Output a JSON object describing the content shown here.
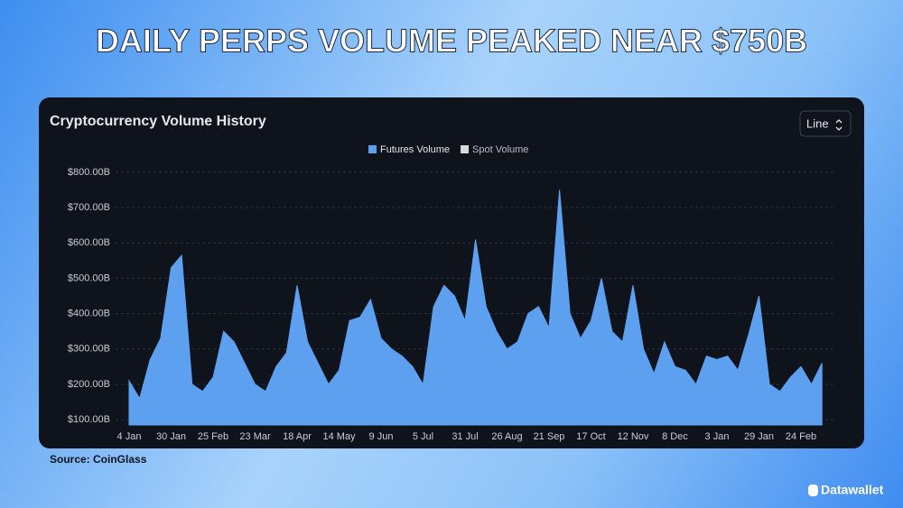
{
  "title": "DAILY PERPS VOLUME PEAKED NEAR $750B",
  "source": "Source: CoinGlass",
  "brand": "Datawallet",
  "chart_data": {
    "type": "area",
    "title": "Cryptocurrency Volume History",
    "control": "Line",
    "watermark": "coinglass",
    "legend_items": [
      {
        "name": "Futures Volume",
        "color": "#5ea0f0"
      },
      {
        "name": "Spot Volume",
        "color": "#d9d9d9"
      }
    ],
    "categories": [
      "4 Jan",
      null,
      null,
      null,
      "30 Jan",
      null,
      null,
      null,
      "25 Feb",
      null,
      null,
      null,
      "23 Mar",
      null,
      null,
      null,
      "18 Apr",
      null,
      null,
      null,
      "14 May",
      null,
      null,
      null,
      "9 Jun",
      null,
      null,
      null,
      "5 Jul",
      null,
      null,
      null,
      "31 Jul",
      null,
      null,
      null,
      "26 Aug",
      null,
      null,
      null,
      "21 Sep",
      null,
      null,
      null,
      "17 Oct",
      null,
      null,
      null,
      "12 Nov",
      null,
      null,
      null,
      "8 Dec",
      null,
      null,
      null,
      "3 Jan",
      null,
      null,
      null,
      "29 Jan",
      null,
      null,
      null,
      "24 Feb",
      null,
      null
    ],
    "series": [
      {
        "name": "Futures Volume",
        "color": "#5ea0f0",
        "values": [
          210,
          160,
          270,
          330,
          530,
          565,
          200,
          180,
          220,
          350,
          320,
          260,
          200,
          180,
          250,
          290,
          480,
          320,
          260,
          200,
          240,
          380,
          390,
          440,
          330,
          300,
          280,
          250,
          200,
          420,
          480,
          450,
          380,
          610,
          420,
          350,
          300,
          320,
          400,
          420,
          360,
          750,
          400,
          330,
          380,
          500,
          350,
          320,
          480,
          300,
          230,
          320,
          250,
          240,
          200,
          280,
          270,
          280,
          240,
          340,
          450,
          200,
          180,
          220,
          250,
          200,
          260
        ]
      }
    ],
    "ylim": [
      85,
      815
    ],
    "yticks": [
      {
        "value": 100,
        "label": "$100.00B"
      },
      {
        "value": 200,
        "label": "$200.00B"
      },
      {
        "value": 300,
        "label": "$300.00B"
      },
      {
        "value": 400,
        "label": "$400.00B"
      },
      {
        "value": 500,
        "label": "$500.00B"
      },
      {
        "value": 600,
        "label": "$600.00B"
      },
      {
        "value": 700,
        "label": "$700.00B"
      },
      {
        "value": 800,
        "label": "$800.00B"
      }
    ],
    "grid": true
  }
}
